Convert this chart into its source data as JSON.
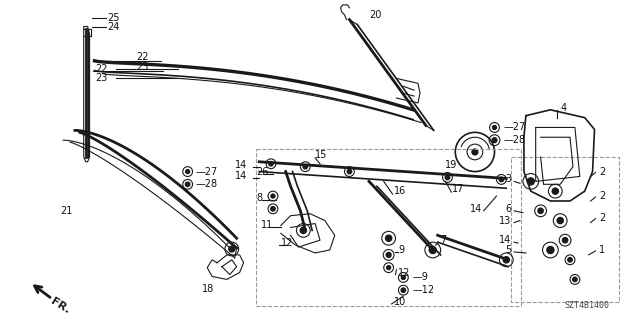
{
  "bg_color": "#ffffff",
  "diagram_id": "SZT4B1400",
  "fig_width": 6.4,
  "fig_height": 3.19,
  "dpi": 100,
  "line_color": "#1a1a1a",
  "text_color": "#111111",
  "text_size": 7.0,
  "dash_color": "#999999"
}
